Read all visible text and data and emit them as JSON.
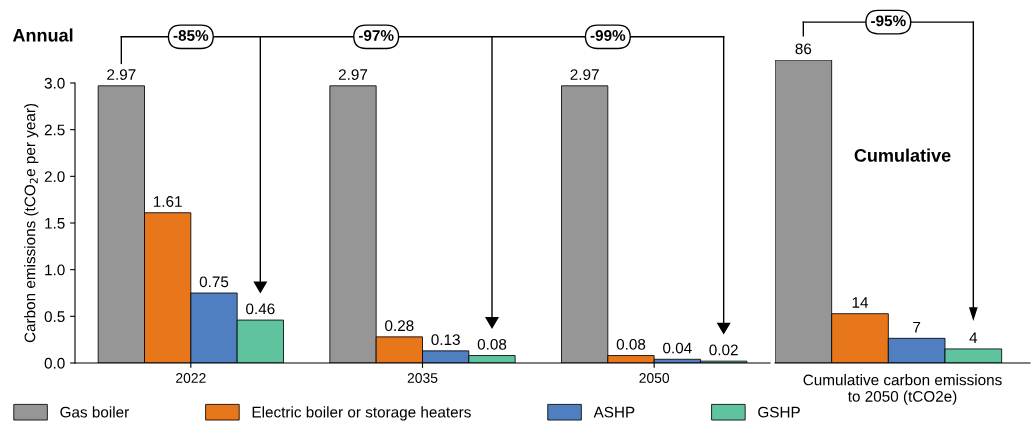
{
  "chart_data": [
    {
      "type": "bar",
      "title": "Annual",
      "ylabel": "Carbon emissions (tCO$_{2}$e per year)",
      "categories": [
        "2022",
        "2035",
        "2050"
      ],
      "ylim": [
        0,
        3.0
      ],
      "yticks": [
        {
          "value": 0,
          "label": "0.0"
        },
        0.5,
        {
          "value": 1,
          "label": "1.0"
        },
        1.5,
        {
          "value": 2,
          "label": "2.0"
        },
        2.5,
        {
          "value": 3,
          "label": "3.0"
        }
      ],
      "data_labels": true,
      "grid": false,
      "legend": "bottom",
      "series": [
        {
          "name": "Gas boiler",
          "color": "#969696",
          "values": [
            2.97,
            2.97,
            2.97
          ]
        },
        {
          "name": "Electric boiler or storage heaters",
          "color": "#e8761b",
          "values": [
            1.61,
            0.28,
            0.08
          ]
        },
        {
          "name": "ASHP",
          "color": "#4f7fc0",
          "values": [
            0.75,
            0.13,
            0.04
          ]
        },
        {
          "name": "GSHP",
          "color": "#5fc49e",
          "values": [
            0.46,
            0.08,
            0.02
          ]
        }
      ],
      "annotations": [
        "-85%",
        "-97%",
        "-99%"
      ]
    },
    {
      "type": "bar",
      "xlabel": "Cumulative carbon emissions to 2050 (tCO2e)",
      "categories": [
        null,
        null,
        null,
        null
      ],
      "values": [
        86,
        14,
        7,
        4
      ],
      "colors": [
        "#969696",
        "#e8761b",
        "#4f7fc0",
        "#5fc49e"
      ],
      "data_labels": true,
      "grid": false,
      "annotations": [
        "Cumulative",
        "-95%"
      ]
    }
  ]
}
